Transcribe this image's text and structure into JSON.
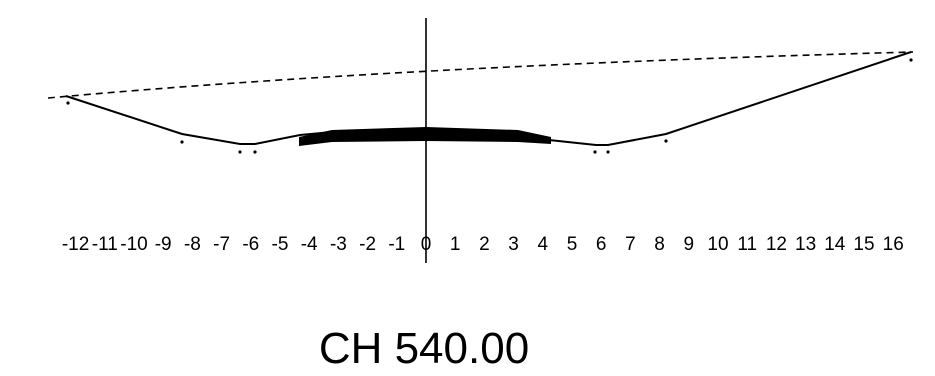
{
  "section": {
    "chainage_label": "CH 540.00",
    "offset_axis_ticks": [
      "-12",
      "-11",
      "-10",
      "-9",
      "-8",
      "-7",
      "-6",
      "-5",
      "-4",
      "-3",
      "-2",
      "-1",
      "0",
      "1",
      "2",
      "3",
      "4",
      "5",
      "6",
      "7",
      "8",
      "9",
      "10",
      "11",
      "12",
      "13",
      "14",
      "15",
      "16"
    ],
    "design_profile_offsets": [
      -12,
      -8,
      -6,
      -4,
      -3,
      0,
      3,
      4,
      6,
      8,
      16
    ],
    "existing_ground_line": "dashed",
    "pavement_extent_offsets": [
      -4,
      4
    ],
    "colors": {
      "line": "#000000",
      "background": "#ffffff"
    }
  }
}
